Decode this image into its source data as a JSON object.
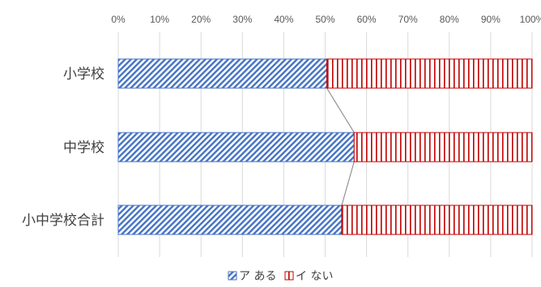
{
  "chart_data": {
    "type": "bar",
    "orientation": "horizontal",
    "stacked": "percent",
    "categories": [
      "小学校",
      "中学校",
      "小中学校合計"
    ],
    "series": [
      {
        "name": "ア ある",
        "values": [
          50.4,
          57.0,
          54.0
        ],
        "color": "#4472C4",
        "pattern": "diagonal-stripes"
      },
      {
        "name": "イ ない",
        "values": [
          49.6,
          43.0,
          46.0
        ],
        "color": "#C00000",
        "pattern": "vertical-stripes"
      }
    ],
    "xlim": [
      0,
      100
    ],
    "x_ticks": [
      "0%",
      "10%",
      "20%",
      "30%",
      "40%",
      "50%",
      "60%",
      "70%",
      "80%",
      "90%",
      "100%"
    ],
    "grid": true,
    "series_lines": true,
    "legend_position": "bottom",
    "title": "",
    "xlabel": "",
    "ylabel": ""
  }
}
